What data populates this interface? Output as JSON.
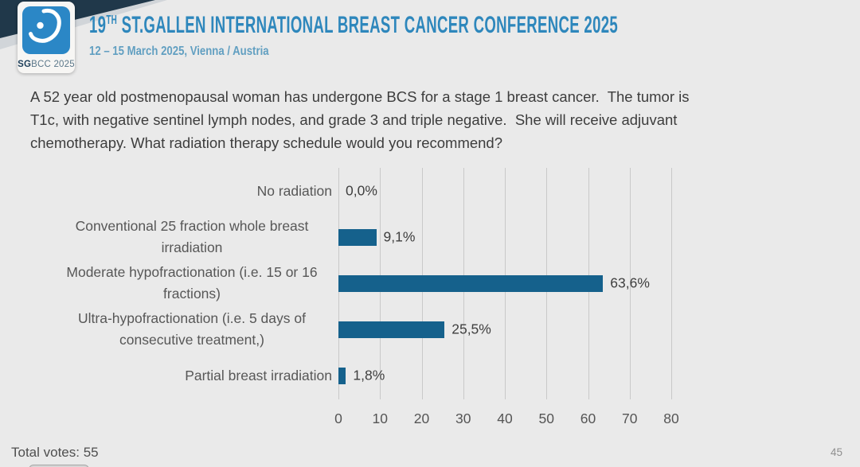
{
  "header": {
    "logo": {
      "icon": "sgbcc-breast-logo",
      "badge_bold": "SG",
      "badge_rest": "BCC 2025"
    },
    "title_num": "19",
    "title_sup": "TH",
    "title_rest": " ST.GALLEN INTERNATIONAL BREAST CANCER CONFERENCE 2025",
    "subtitle": "12 – 15 March 2025, Vienna / Austria"
  },
  "question": "A 52 year old postmenopausal woman has undergone BCS for a stage 1 breast cancer.  The tumor is\nT1c, with negative sentinel lymph nodes, and grade 3 and triple negative.  She will receive adjuvant\nchemotherapy. What radiation therapy schedule would you recommend?",
  "chart_data": {
    "type": "bar",
    "orientation": "horizontal",
    "categories": [
      "No radiation",
      "Conventional 25 fraction whole breast irradiation",
      "Moderate hypofractionation (i.e. 15 or 16 fractions)",
      "Ultra-hypofractionation (i.e. 5 days of consecutive treatment,)",
      "Partial breast irradiation"
    ],
    "values": [
      0.0,
      9.1,
      63.6,
      25.5,
      1.8
    ],
    "value_labels": [
      "0,0%",
      "9,1%",
      "63,6%",
      "25,5%",
      "1,8%"
    ],
    "x_ticks": [
      0,
      10,
      20,
      30,
      40,
      50,
      60,
      70,
      80
    ],
    "xlim": [
      0,
      80
    ],
    "grid": true,
    "legend": false,
    "bar_color": "#15618c",
    "gridline_color": "#c9c9c9"
  },
  "footer": {
    "total_votes": "Total votes: 55",
    "page_number": "45"
  },
  "colors": {
    "background": "#eaeaea",
    "accent_blue": "#2e87bc",
    "bar_blue": "#15618c",
    "navy_corner": "#20384a",
    "logo_blue": "#2b87c6"
  }
}
